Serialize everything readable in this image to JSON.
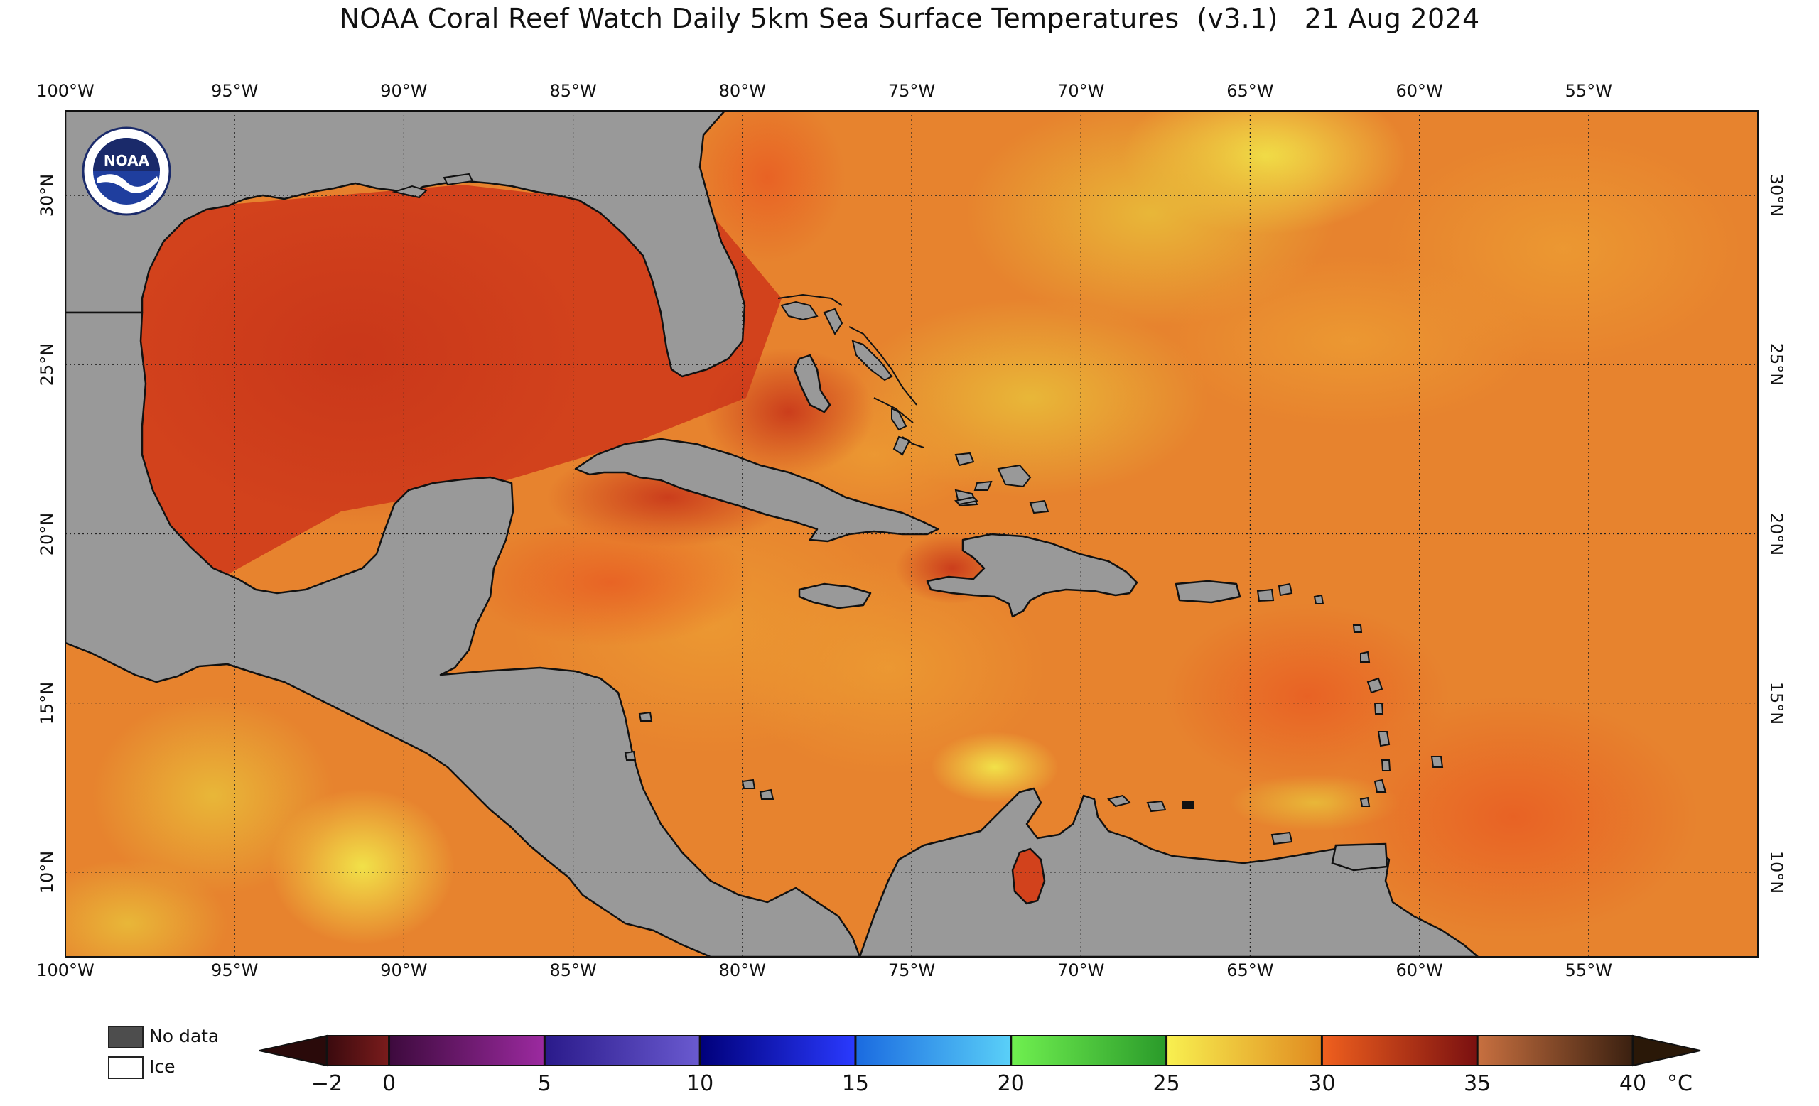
{
  "title": "NOAA Coral Reef Watch Daily 5km Sea Surface Temperatures  (v3.1)   21 Aug 2024",
  "map": {
    "lon_range": [
      -100,
      -50
    ],
    "lat_range": [
      7.5,
      32.5
    ],
    "lon_ticks": [
      {
        "value": -100,
        "label": "100°W"
      },
      {
        "value": -95,
        "label": "95°W"
      },
      {
        "value": -90,
        "label": "90°W"
      },
      {
        "value": -85,
        "label": "85°W"
      },
      {
        "value": -80,
        "label": "80°W"
      },
      {
        "value": -75,
        "label": "75°W"
      },
      {
        "value": -70,
        "label": "70°W"
      },
      {
        "value": -65,
        "label": "65°W"
      },
      {
        "value": -60,
        "label": "60°W"
      },
      {
        "value": -55,
        "label": "55°W"
      }
    ],
    "lat_ticks": [
      {
        "value": 30,
        "label": "30°N"
      },
      {
        "value": 25,
        "label": "25°N"
      },
      {
        "value": 20,
        "label": "20°N"
      },
      {
        "value": 15,
        "label": "15°N"
      },
      {
        "value": 10,
        "label": "10°N"
      }
    ],
    "land_color": "#999999",
    "coast_color": "#111111",
    "grid": "dotted"
  },
  "logo": {
    "text": "NOAA",
    "icon": "noaa-logo-icon"
  },
  "legend": {
    "no_data": {
      "label": "No data",
      "color": "#4d4d4d"
    },
    "ice": {
      "label": "Ice",
      "color": "#ffffff"
    }
  },
  "colorbar": {
    "min": -2,
    "max": 40,
    "unit": "°C",
    "ticks": [
      {
        "value": -2,
        "label": "−2"
      },
      {
        "value": 0,
        "label": "0"
      },
      {
        "value": 5,
        "label": "5"
      },
      {
        "value": 10,
        "label": "10"
      },
      {
        "value": 15,
        "label": "15"
      },
      {
        "value": 20,
        "label": "20"
      },
      {
        "value": 25,
        "label": "25"
      },
      {
        "value": 30,
        "label": "30"
      },
      {
        "value": 35,
        "label": "35"
      },
      {
        "value": 40,
        "label": "40"
      }
    ],
    "segments": [
      {
        "from": -2,
        "to": 0,
        "colors": [
          "#3a0a0e",
          "#7a1c1c"
        ]
      },
      {
        "from": 0,
        "to": 5,
        "colors": [
          "#3d0a3d",
          "#9c2aa0"
        ]
      },
      {
        "from": 5,
        "to": 10,
        "colors": [
          "#2a1a8a",
          "#6a5ad0"
        ]
      },
      {
        "from": 10,
        "to": 15,
        "colors": [
          "#00007a",
          "#2a3aff"
        ]
      },
      {
        "from": 15,
        "to": 20,
        "colors": [
          "#1a6ae0",
          "#5ad0f8"
        ]
      },
      {
        "from": 20,
        "to": 25,
        "colors": [
          "#70f050",
          "#2a9a2a"
        ]
      },
      {
        "from": 25,
        "to": 30,
        "colors": [
          "#f8f050",
          "#e08a20"
        ]
      },
      {
        "from": 30,
        "to": 35,
        "colors": [
          "#f0601e",
          "#7a1010"
        ]
      },
      {
        "from": 35,
        "to": 40,
        "colors": [
          "#c87040",
          "#3a2010"
        ]
      }
    ],
    "low_arrow_color": "#2a0a0a",
    "high_arrow_color": "#2a1808"
  }
}
